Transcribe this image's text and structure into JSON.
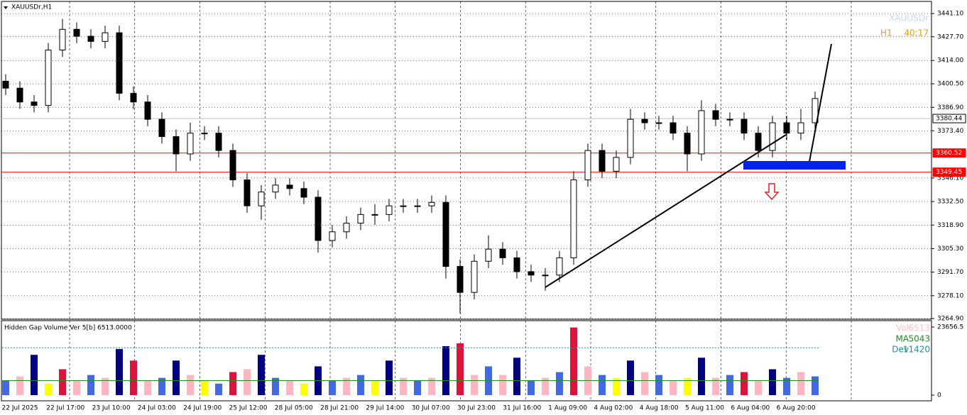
{
  "chart_data": {
    "type": "candlestick",
    "symbol_label": "XAUUSDr,H1",
    "watermark": "XAUUSDr",
    "timeframe": "H1",
    "timer": "40:17",
    "categories": [
      "22 Jul 2025",
      "22 Jul 17:00",
      "23 Jul 10:00",
      "24 Jul 03:00",
      "24 Jul 19:00",
      "25 Jul 12:00",
      "28 Jul 05:00",
      "28 Jul 21:00",
      "29 Jul 14:00",
      "30 Jul 07:00",
      "30 Jul 23:00",
      "31 Jul 16:00",
      "1 Aug 09:00",
      "4 Aug 02:00",
      "4 Aug 18:00",
      "5 Aug 11:00",
      "6 Aug 04:00",
      "6 Aug 20:00"
    ],
    "open": [
      3402,
      3398,
      3390,
      3388,
      3420,
      3432,
      3428,
      3425,
      3430,
      3395,
      3390,
      3380,
      3370,
      3360,
      3372,
      3372,
      3362,
      3345,
      3330,
      3338,
      3342,
      3340,
      3335,
      3310,
      3315,
      3320,
      3325,
      3325,
      3330,
      3330,
      3330,
      3332,
      3295,
      3280,
      3298,
      3305,
      3300,
      3292,
      3290,
      3290,
      3300,
      3345,
      3362,
      3350,
      3358,
      3380,
      3378,
      3378,
      3372,
      3360,
      3385,
      3380,
      3380,
      3372,
      3362,
      3378,
      3372,
      3378
    ],
    "high": [
      3406,
      3402,
      3394,
      3424,
      3438,
      3436,
      3432,
      3434,
      3434,
      3399,
      3394,
      3384,
      3374,
      3378,
      3376,
      3376,
      3366,
      3349,
      3342,
      3346,
      3346,
      3344,
      3339,
      3319,
      3324,
      3329,
      3331,
      3334,
      3334,
      3334,
      3336,
      3336,
      3299,
      3302,
      3313,
      3309,
      3304,
      3296,
      3294,
      3304,
      3350,
      3366,
      3366,
      3362,
      3386,
      3384,
      3382,
      3382,
      3376,
      3391,
      3389,
      3384,
      3384,
      3376,
      3382,
      3382,
      3386,
      3396
    ],
    "low": [
      3394,
      3386,
      3384,
      3384,
      3416,
      3424,
      3421,
      3421,
      3391,
      3386,
      3376,
      3366,
      3350,
      3356,
      3368,
      3358,
      3341,
      3326,
      3322,
      3334,
      3336,
      3331,
      3303,
      3306,
      3311,
      3316,
      3319,
      3321,
      3326,
      3326,
      3326,
      3288,
      3268,
      3276,
      3294,
      3296,
      3288,
      3286,
      3281,
      3286,
      3296,
      3341,
      3346,
      3346,
      3354,
      3374,
      3374,
      3368,
      3350,
      3356,
      3376,
      3376,
      3368,
      3358,
      3358,
      3368,
      3368,
      3374
    ],
    "close": [
      3398,
      3390,
      3388,
      3420,
      3432,
      3428,
      3425,
      3430,
      3395,
      3390,
      3380,
      3370,
      3360,
      3372,
      3372,
      3362,
      3345,
      3330,
      3338,
      3342,
      3340,
      3335,
      3310,
      3315,
      3320,
      3325,
      3325,
      3330,
      3330,
      3330,
      3332,
      3295,
      3280,
      3298,
      3305,
      3300,
      3292,
      3290,
      3290,
      3300,
      3345,
      3362,
      3350,
      3358,
      3380,
      3378,
      3378,
      3372,
      3360,
      3385,
      3380,
      3380,
      3372,
      3362,
      3378,
      3372,
      3378,
      3392
    ],
    "ylim": [
      3264.5,
      3448.1
    ],
    "yticks": [
      {
        "value": 3441.1,
        "label": "3441.10"
      },
      {
        "value": 3427.7,
        "label": "3427.70"
      },
      {
        "value": 3414,
        "label": "3414.00"
      },
      {
        "value": 3400.5,
        "label": "3400.50"
      },
      {
        "value": 3386.9,
        "label": "3386.90"
      },
      {
        "value": 3373.4,
        "label": "3373.40"
      },
      {
        "value": 3346.1,
        "label": "3346.10"
      },
      {
        "value": 3332.5,
        "label": "3332.50"
      },
      {
        "value": 3318.9,
        "label": "3318.90"
      },
      {
        "value": 3305.3,
        "label": "3305.30"
      },
      {
        "value": 3291.7,
        "label": "3291.70"
      },
      {
        "value": 3278.1,
        "label": "3278.10"
      },
      {
        "value": 3264.9,
        "label": "3264.90"
      }
    ],
    "price_lines": [
      {
        "value": 3380.44,
        "label": "3380.44",
        "color": "#c0c0c0"
      },
      {
        "value": 3360.52,
        "label": "3360.52",
        "color": "#ff0000"
      },
      {
        "value": 3349.45,
        "label": "3349.45",
        "color": "#ff0000"
      }
    ],
    "indicator": {
      "title": "Hidden Gap Volume Ver 5[b] 6513.0000",
      "vol_label": "Vol",
      "vol": 6513,
      "ma_label": "MA",
      "ma": 5043,
      "dev_label": "Dev",
      "dev": 11420,
      "ylim": [
        0,
        23656.5
      ],
      "yticks": [
        {
          "value": 23656.5,
          "label": "23656.5"
        },
        0
      ],
      "values": [
        5000,
        6500,
        14000,
        4000,
        9000,
        5000,
        7000,
        6000,
        16000,
        12000,
        5000,
        6000,
        12000,
        7000,
        5000,
        4000,
        8000,
        9000,
        14000,
        6000,
        5000,
        4000,
        10000,
        5000,
        6000,
        7000,
        5000,
        12000,
        6000,
        5000,
        6000,
        17000,
        18000,
        7000,
        10000,
        7000,
        13000,
        5000,
        6000,
        8000,
        23500,
        10000,
        7000,
        6000,
        12000,
        8000,
        7000,
        5000,
        6000,
        13000,
        6000,
        7000,
        8000,
        5000,
        9000,
        6000,
        8000,
        6513
      ],
      "colors": [
        "#4169e1",
        "#ffb6c1",
        "#000080",
        "#ffff00",
        "#dc143c",
        "#ffb6c1",
        "#4169e1",
        "#ffb6c1",
        "#000080",
        "#dc143c",
        "#ffb6c1",
        "#4169e1",
        "#000080",
        "#ffb6c1",
        "#ffff00",
        "#4169e1",
        "#dc143c",
        "#ffb6c1",
        "#000080",
        "#4169e1",
        "#ffb6c1",
        "#ffff00",
        "#000080",
        "#4169e1",
        "#ffb6c1",
        "#4169e1",
        "#ffff00",
        "#000080",
        "#ffb6c1",
        "#4169e1",
        "#ffb6c1",
        "#000080",
        "#dc143c",
        "#ffb6c1",
        "#4169e1",
        "#ffb6c1",
        "#000080",
        "#4169e1",
        "#ffb6c1",
        "#4169e1",
        "#dc143c",
        "#ffb6c1",
        "#4169e1",
        "#ffff00",
        "#000080",
        "#ffb6c1",
        "#4169e1",
        "#ffb6c1",
        "#ffff00",
        "#000080",
        "#ffb6c1",
        "#4169e1",
        "#dc143c",
        "#ffb6c1",
        "#000080",
        "#4169e1",
        "#ffb6c1",
        "#4169e1"
      ]
    }
  }
}
